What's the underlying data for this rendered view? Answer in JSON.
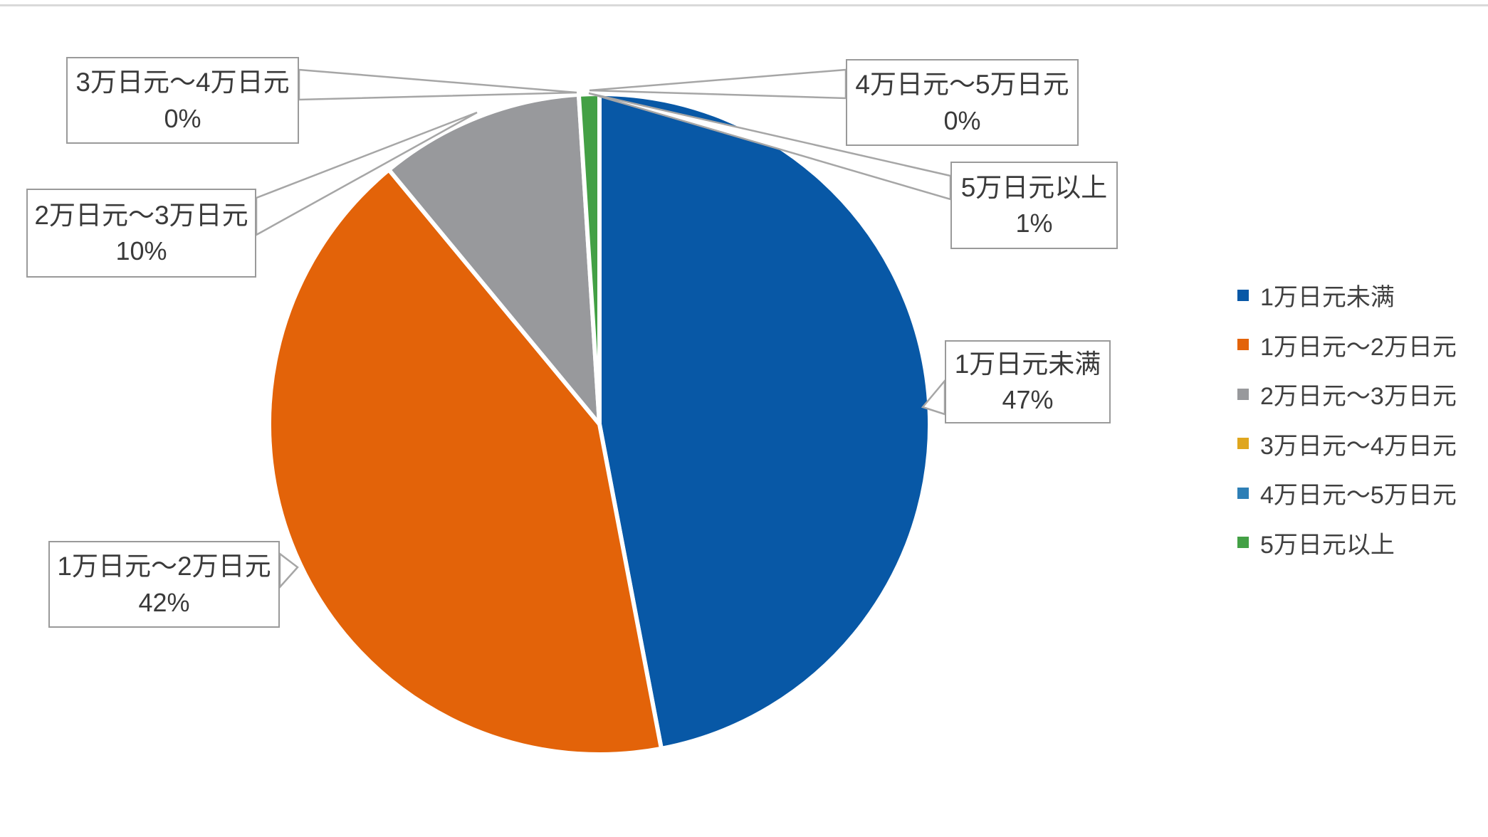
{
  "page": {
    "background": "#ffffff",
    "top_border_color": "#d9d9d9"
  },
  "chart_data": {
    "type": "pie",
    "title": "",
    "categories": [
      "1万日元未满",
      "1万日元〜2万日元",
      "2万日元〜3万日元",
      "3万日元〜4万日元",
      "4万日元〜5万日元",
      "5万日元以上"
    ],
    "values": [
      47,
      42,
      10,
      0,
      0,
      1
    ],
    "unit": "%",
    "data_labels": [
      "47%",
      "42%",
      "10%",
      "0%",
      "0%",
      "1%"
    ],
    "colors": [
      "#0858a6",
      "#e36309",
      "#98999c",
      "#dfa61e",
      "#2e7fb6",
      "#43a045"
    ],
    "slice_border_color": "#ffffff",
    "legend_position": "right",
    "start_angle_deg": 0,
    "direction": "clockwise"
  },
  "callouts": [
    {
      "label": "3万日元〜4万日元",
      "value": "0%"
    },
    {
      "label": "2万日元〜3万日元",
      "value": "10%"
    },
    {
      "label": "4万日元〜5万日元",
      "value": "0%"
    },
    {
      "label": "5万日元以上",
      "value": "1%"
    },
    {
      "label": "1万日元未满",
      "value": "47%"
    },
    {
      "label": "1万日元〜2万日元",
      "value": "42%"
    }
  ],
  "legend": {
    "items": [
      {
        "label": "1万日元未满",
        "color": "#0858a6"
      },
      {
        "label": "1万日元〜2万日元",
        "color": "#e36309"
      },
      {
        "label": "2万日元〜3万日元",
        "color": "#98999c"
      },
      {
        "label": "3万日元〜4万日元",
        "color": "#dfa61e"
      },
      {
        "label": "4万日元〜5万日元",
        "color": "#2e7fb6"
      },
      {
        "label": "5万日元以上",
        "color": "#43a045"
      }
    ]
  }
}
